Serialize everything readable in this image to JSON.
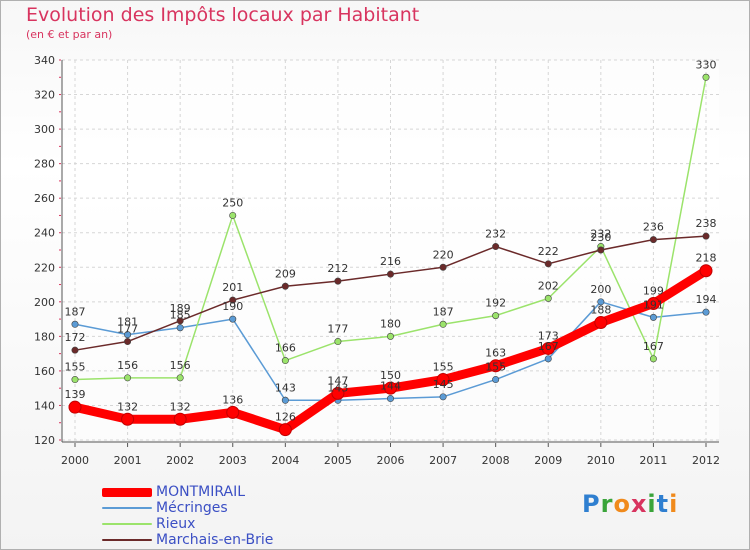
{
  "chart_data": {
    "type": "line",
    "title": "Evolution des Impôts locaux par Habitant",
    "subtitle": "(en € et par an)",
    "xlabel": "",
    "ylabel": "",
    "categories": [
      "2000",
      "2001",
      "2002",
      "2003",
      "2004",
      "2005",
      "2006",
      "2007",
      "2008",
      "2009",
      "2010",
      "2011",
      "2012"
    ],
    "ylim": [
      120,
      340
    ],
    "yticks": [
      120,
      140,
      160,
      180,
      200,
      220,
      240,
      260,
      280,
      300,
      320,
      340
    ],
    "grid": true,
    "legend_position": "bottom-left",
    "series": [
      {
        "name": "MONTMIRAIL",
        "color": "#ff0000",
        "values": [
          139,
          132,
          132,
          136,
          126,
          147,
          150,
          155,
          163,
          173,
          188,
          199,
          218
        ]
      },
      {
        "name": "Mécringes",
        "color": "#5b9bd5",
        "values": [
          187,
          181,
          185,
          190,
          143,
          143,
          144,
          145,
          155,
          167,
          200,
          191,
          194
        ]
      },
      {
        "name": "Rieux",
        "color": "#9be36b",
        "values": [
          155,
          156,
          156,
          250,
          166,
          177,
          180,
          187,
          192,
          202,
          232,
          167,
          330
        ]
      },
      {
        "name": "Marchais-en-Brie",
        "color": "#6b2a2a",
        "values": [
          172,
          177,
          189,
          201,
          209,
          212,
          216,
          220,
          232,
          222,
          230,
          236,
          238
        ]
      }
    ]
  },
  "logo": {
    "text": "Proxiti"
  }
}
